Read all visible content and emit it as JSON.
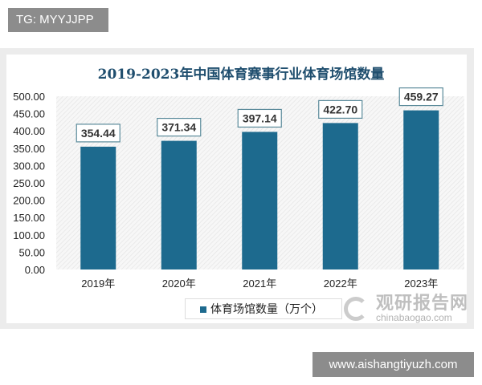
{
  "watermark_top": "TG: MYYJJPP",
  "watermark_bottom": "www.aishangtiyuzh.com",
  "brand_watermark": {
    "cn": "观研报告网",
    "en": "chinabaogao.com"
  },
  "chart_data": {
    "type": "bar",
    "title": "2019-2023年中国体育赛事行业体育场馆数量",
    "categories": [
      "2019年",
      "2020年",
      "2021年",
      "2022年",
      "2023年"
    ],
    "series": [
      {
        "name": "体育场馆数量（万个）",
        "values": [
          354.44,
          371.34,
          397.14,
          422.7,
          459.27
        ]
      }
    ],
    "data_labels": [
      "354.44",
      "371.34",
      "397.14",
      "422.70",
      "459.27"
    ],
    "yticks": [
      "0.00",
      "50.00",
      "100.00",
      "150.00",
      "200.00",
      "250.00",
      "300.00",
      "350.00",
      "400.00",
      "450.00",
      "500.00"
    ],
    "ylim": [
      0,
      500
    ],
    "grid": false,
    "legend": "bottom",
    "bar_color": "#1d6a8e"
  }
}
